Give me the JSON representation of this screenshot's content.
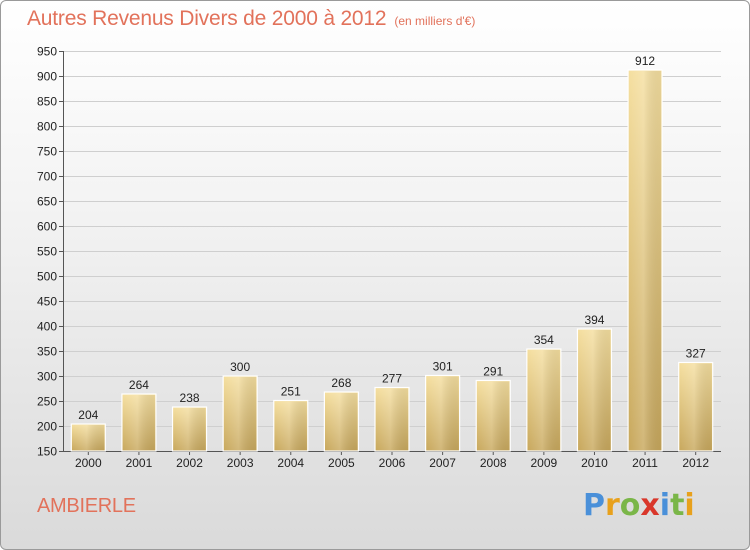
{
  "title": {
    "main": "Autres Revenus Divers de 2000 à 2012",
    "sub": "(en milliers d'€)"
  },
  "commune": "AMBIERLE",
  "brand": {
    "text": "Proxiti",
    "letter_colors": [
      "#4a90d9",
      "#e8a11c",
      "#7ab648",
      "#d9372b",
      "#4a90d9",
      "#7ab648",
      "#e8a11c"
    ]
  },
  "colors": {
    "bar_light": "#f5dfa0",
    "bar_dark": "#c8a85d",
    "title": "#e2725b",
    "grid": "#cfcfcf"
  },
  "chart_data": {
    "type": "bar",
    "categories": [
      "2000",
      "2001",
      "2002",
      "2003",
      "2004",
      "2005",
      "2006",
      "2007",
      "2008",
      "2009",
      "2010",
      "2011",
      "2012"
    ],
    "values": [
      204,
      264,
      238,
      300,
      251,
      268,
      277,
      301,
      291,
      354,
      394,
      912,
      327
    ],
    "ylim": [
      150,
      950
    ],
    "yticks": [
      150,
      200,
      250,
      300,
      350,
      400,
      450,
      500,
      550,
      600,
      650,
      700,
      750,
      800,
      850,
      900,
      950
    ],
    "grid": true,
    "data_labels": true
  }
}
